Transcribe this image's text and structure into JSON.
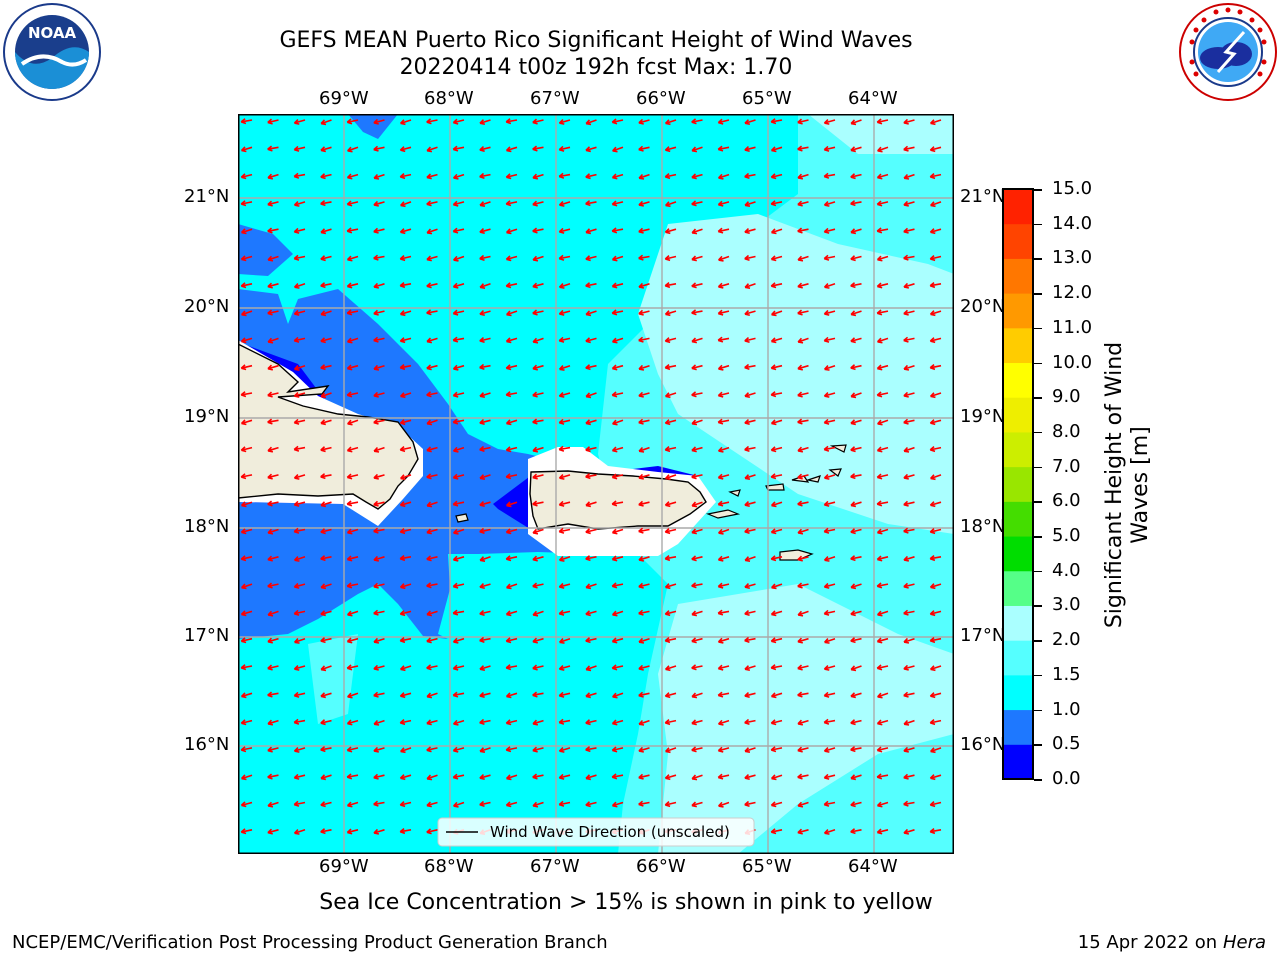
{
  "header": {
    "title_line1": "GEFS MEAN Puerto Rico Significant Height of Wind Waves",
    "title_line2": "20220414 t00z 192h fcst   Max: 1.70"
  },
  "map": {
    "longitude_labels": [
      "69°W",
      "68°W",
      "67°W",
      "66°W",
      "65°W",
      "64°W"
    ],
    "latitude_labels": [
      "21°N",
      "20°N",
      "19°N",
      "18°N",
      "17°N",
      "16°N"
    ],
    "legend_label": "Wind Wave Direction (unscaled)",
    "arrow_color": "#ff0000",
    "land_color": "#f0eddc",
    "field_colors": {
      "0.0-0.5": "#0000ff",
      "0.5-1.0": "#1e78ff",
      "1.0-1.5": "#00ffff",
      "1.5-2.0": "#55ffff",
      "2.0-3.0": "#aaffff"
    }
  },
  "colorbar": {
    "title": "Significant Height of Wind Waves [m]",
    "ticks": [
      "0.0",
      "0.5",
      "1.0",
      "1.5",
      "2.0",
      "3.0",
      "4.0",
      "5.0",
      "6.0",
      "7.0",
      "8.0",
      "9.0",
      "10.0",
      "11.0",
      "12.0",
      "13.0",
      "14.0",
      "15.0"
    ],
    "colors": [
      "#0000ff",
      "#1e78ff",
      "#00ffff",
      "#55ffff",
      "#aaffff",
      "#55ff88",
      "#00dd00",
      "#44dd00",
      "#99e600",
      "#ccee00",
      "#eeee00",
      "#ffff00",
      "#ffcc00",
      "#ff9900",
      "#ff7700",
      "#ff4400",
      "#ff2200"
    ]
  },
  "logos": {
    "noaa": {
      "text": "NOAA",
      "ring_text": "NATIONAL OCEANIC AND ATMOSPHERIC ADMINISTRATION · U.S. DEPARTMENT OF COMMERCE"
    },
    "nws": {
      "ring_text": "NATIONAL WEATHER SERVICE"
    }
  },
  "footer": {
    "sea_ice_note": "Sea Ice Concentration > 15% is shown in pink to yellow",
    "producer": "NCEP/EMC/Verification Post Processing Product Generation Branch",
    "date": "15 Apr 2022 on ",
    "machine": "Hera"
  }
}
